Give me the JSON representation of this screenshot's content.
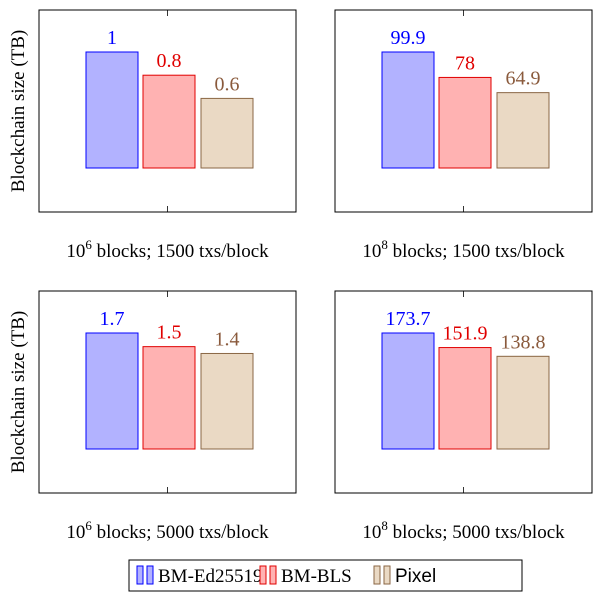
{
  "chart_data": [
    {
      "type": "bar",
      "xlabel_base": "10",
      "xlabel_exp": "6",
      "xlabel_rest": " blocks; 1500 txs/block",
      "ylabel": "Blockchain size (TB)",
      "series": [
        {
          "name": "BM-Ed25519",
          "values": [
            1
          ],
          "labels": [
            "1"
          ]
        },
        {
          "name": "BM-BLS",
          "values": [
            0.8
          ],
          "labels": [
            "0.8"
          ]
        },
        {
          "name": "Pixel",
          "values": [
            0.6
          ],
          "labels": [
            "0.6"
          ]
        }
      ]
    },
    {
      "type": "bar",
      "xlabel_base": "10",
      "xlabel_exp": "8",
      "xlabel_rest": " blocks; 1500 txs/block",
      "ylabel": "",
      "series": [
        {
          "name": "BM-Ed25519",
          "values": [
            99.9
          ],
          "labels": [
            "99.9"
          ]
        },
        {
          "name": "BM-BLS",
          "values": [
            78
          ],
          "labels": [
            "78"
          ]
        },
        {
          "name": "Pixel",
          "values": [
            64.9
          ],
          "labels": [
            "64.9"
          ]
        }
      ]
    },
    {
      "type": "bar",
      "xlabel_base": "10",
      "xlabel_exp": "6",
      "xlabel_rest": " blocks; 5000 txs/block",
      "ylabel": "Blockchain size (TB)",
      "series": [
        {
          "name": "BM-Ed25519",
          "values": [
            1.7
          ],
          "labels": [
            "1.7"
          ]
        },
        {
          "name": "BM-BLS",
          "values": [
            1.5
          ],
          "labels": [
            "1.5"
          ]
        },
        {
          "name": "Pixel",
          "values": [
            1.4
          ],
          "labels": [
            "1.4"
          ]
        }
      ]
    },
    {
      "type": "bar",
      "xlabel_base": "10",
      "xlabel_exp": "8",
      "xlabel_rest": " blocks; 5000 txs/block",
      "ylabel": "",
      "series": [
        {
          "name": "BM-Ed25519",
          "values": [
            173.7
          ],
          "labels": [
            "173.7"
          ]
        },
        {
          "name": "BM-BLS",
          "values": [
            151.9
          ],
          "labels": [
            "151.9"
          ]
        },
        {
          "name": "Pixel",
          "values": [
            138.8
          ],
          "labels": [
            "138.8"
          ]
        }
      ]
    }
  ],
  "legend": {
    "placement": "bottom-center",
    "entries": [
      {
        "name": "BM-Ed25519",
        "fill": "#b2b2ff",
        "stroke": "#0000ff",
        "label_color": "#0000ff"
      },
      {
        "name": "BM-BLS",
        "fill": "#ffb2b2",
        "stroke": "#e00000",
        "label_color": "#e00000"
      },
      {
        "name": "Pixel",
        "fill": "#ead9c4",
        "stroke": "#8a6644",
        "label_color": "#8a5a3c"
      }
    ]
  }
}
